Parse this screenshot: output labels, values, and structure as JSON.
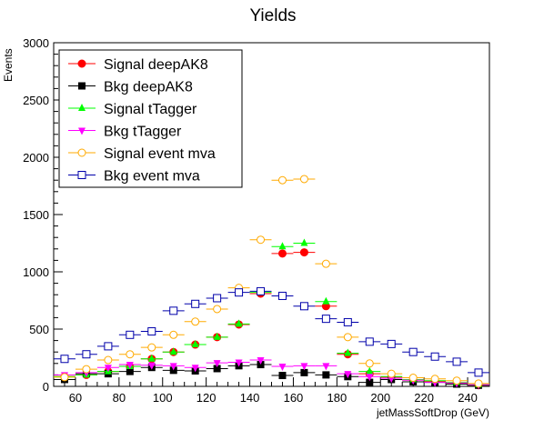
{
  "chart_data": {
    "type": "scatter",
    "title": "Yields",
    "xlabel": "jetMassSoftDrop (GeV)",
    "ylabel": "Events",
    "xlim": [
      50,
      250
    ],
    "ylim": [
      0,
      3000
    ],
    "x_ticks": [
      60,
      80,
      100,
      120,
      140,
      160,
      180,
      200,
      220,
      240
    ],
    "y_ticks": [
      0,
      500,
      1000,
      1500,
      2000,
      2500,
      3000
    ],
    "bin_width": 10,
    "x": [
      55,
      65,
      75,
      85,
      95,
      105,
      115,
      125,
      135,
      145,
      155,
      165,
      175,
      185,
      195,
      205,
      215,
      225,
      235,
      245
    ],
    "legend_position": "top-left",
    "grid": false,
    "series": [
      {
        "name": "Signal deepAK8",
        "color": "#ff0000",
        "marker": "circle-filled",
        "values": [
          85,
          100,
          130,
          175,
          240,
          300,
          365,
          430,
          540,
          810,
          1160,
          1170,
          700,
          280,
          110,
          80,
          55,
          45,
          30,
          10
        ]
      },
      {
        "name": "Bkg deepAK8",
        "color": "#000000",
        "marker": "square-filled",
        "values": [
          60,
          110,
          110,
          130,
          165,
          140,
          135,
          155,
          180,
          190,
          95,
          120,
          100,
          85,
          35,
          60,
          40,
          35,
          20,
          10
        ]
      },
      {
        "name": "Signal tTagger",
        "color": "#00ff00",
        "marker": "triangle-up",
        "values": [
          85,
          100,
          130,
          175,
          240,
          300,
          365,
          430,
          545,
          820,
          1220,
          1250,
          740,
          290,
          130,
          85,
          60,
          50,
          35,
          15
        ]
      },
      {
        "name": "Bkg tTagger",
        "color": "#ff00ff",
        "marker": "triangle-down",
        "values": [
          100,
          120,
          165,
          190,
          185,
          180,
          165,
          205,
          210,
          230,
          175,
          180,
          180,
          110,
          85,
          70,
          55,
          35,
          30,
          15
        ]
      },
      {
        "name": "Signal event mva",
        "color": "#ffaa00",
        "marker": "circle-open",
        "values": [
          80,
          150,
          230,
          280,
          340,
          450,
          565,
          675,
          860,
          1280,
          1800,
          1810,
          1070,
          430,
          200,
          110,
          75,
          65,
          50,
          25
        ]
      },
      {
        "name": "Bkg event mva",
        "color": "#0000aa",
        "marker": "square-open",
        "values": [
          240,
          280,
          350,
          450,
          480,
          660,
          720,
          770,
          820,
          830,
          790,
          700,
          590,
          560,
          390,
          370,
          300,
          260,
          215,
          120
        ]
      }
    ]
  }
}
